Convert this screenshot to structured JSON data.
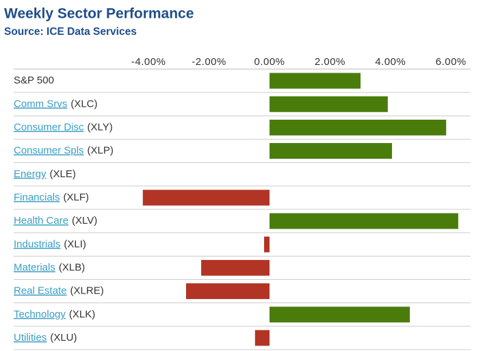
{
  "chart_data": {
    "type": "bar",
    "orientation": "horizontal",
    "title": "Weekly Sector Performance",
    "subtitle": "Source: ICE Data Services",
    "categories": [
      "S&P 500",
      "Comm Srvs",
      "Consumer Disc",
      "Consumer Spls",
      "Energy",
      "Financials",
      "Health Care",
      "Industrials",
      "Materials",
      "Real Estate",
      "Technology",
      "Utilities"
    ],
    "tickers": [
      null,
      "(XLC)",
      "(XLY)",
      "(XLP)",
      "(XLE)",
      "(XLF)",
      "(XLV)",
      "(XLI)",
      "(XLB)",
      "(XLRE)",
      "(XLK)",
      "(XLU)"
    ],
    "linked": [
      false,
      true,
      true,
      true,
      true,
      true,
      true,
      true,
      true,
      true,
      true,
      true
    ],
    "values": [
      3.01,
      3.91,
      5.84,
      4.05,
      0,
      -4.19,
      6.24,
      -0.18,
      -2.26,
      -2.76,
      4.64,
      -0.48
    ],
    "positive_color": "#4a7c0c",
    "negative_color": "#b23424",
    "xlim": [
      -8.46,
      6.65
    ],
    "xticks": [
      {
        "value": -4,
        "label": "-4.00%"
      },
      {
        "value": -2,
        "label": "-2.00%"
      },
      {
        "value": 0,
        "label": "0.00%"
      },
      {
        "value": 2,
        "label": "2.00%"
      },
      {
        "value": 4,
        "label": "4.00%"
      },
      {
        "value": 6,
        "label": "6.00%"
      }
    ],
    "grid": false
  }
}
